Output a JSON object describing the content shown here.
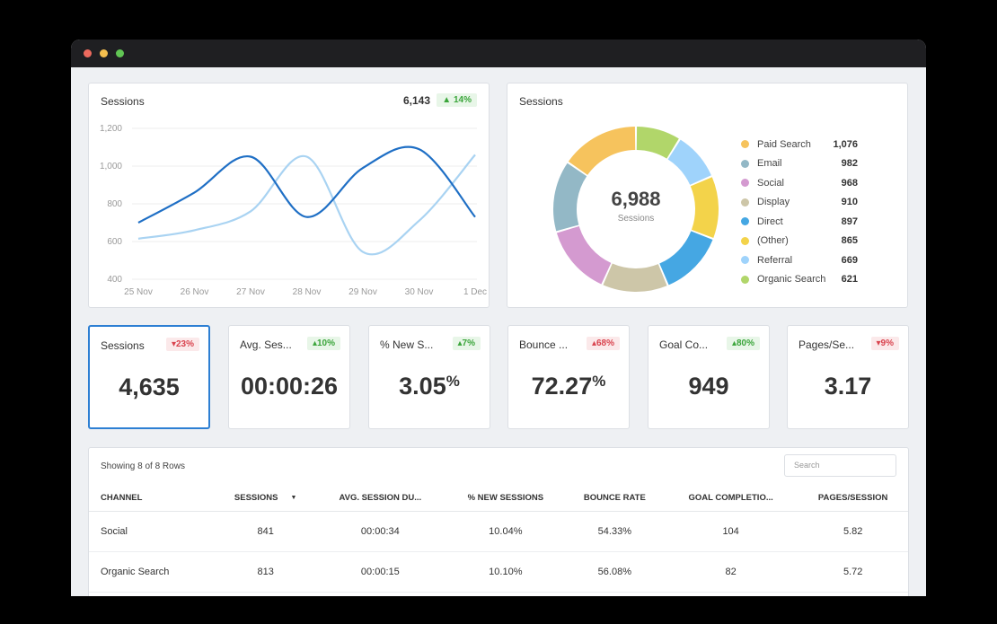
{
  "line_chart": {
    "title": "Sessions",
    "total": "6,143",
    "change": "14%",
    "change_dir": "up",
    "chart_data": {
      "type": "line",
      "x": [
        "25 Nov",
        "26 Nov",
        "27 Nov",
        "28 Nov",
        "29 Nov",
        "30 Nov",
        "1 Dec"
      ],
      "ylim": [
        400,
        1200
      ],
      "yticks": [
        "1,200",
        "1,000",
        "800",
        "600",
        "400"
      ],
      "series": [
        {
          "color": "#1f6fc5",
          "values": [
            700,
            860,
            1050,
            730,
            990,
            1090,
            730
          ]
        },
        {
          "color": "#a9d3f2",
          "values": [
            615,
            660,
            760,
            1050,
            545,
            710,
            1060
          ]
        }
      ]
    }
  },
  "donut": {
    "title": "Sessions",
    "center_value": "6,988",
    "center_label": "Sessions",
    "chart_data": {
      "type": "pie",
      "categories": [
        "Paid Search",
        "Email",
        "Social",
        "Display",
        "Direct",
        "(Other)",
        "Referral",
        "Organic Search"
      ],
      "labels": [
        "1,076",
        "982",
        "968",
        "910",
        "897",
        "865",
        "669",
        "621"
      ],
      "values": [
        1076,
        982,
        968,
        910,
        897,
        865,
        669,
        621
      ],
      "colors": [
        "#f6c35d",
        "#93b8c6",
        "#d49ad0",
        "#cdc6a8",
        "#45a7e3",
        "#f3d34a",
        "#9fd3fb",
        "#b1d66a"
      ],
      "draw_order": [
        "Organic Search",
        "Referral",
        "(Other)",
        "Direct",
        "Display",
        "Social",
        "Email",
        "Paid Search"
      ]
    }
  },
  "kpis": [
    {
      "label": "Sessions",
      "value": "4,635",
      "suffix": "",
      "change": "23%",
      "dir": "down",
      "active": true
    },
    {
      "label": "Avg. Session Duration",
      "value": "00:00:26",
      "suffix": "",
      "change": "10%",
      "dir": "up",
      "active": false
    },
    {
      "label": "% New Sessions",
      "value": "3.05",
      "suffix": "%",
      "change": "7%",
      "dir": "up",
      "active": false
    },
    {
      "label": "Bounce Rate",
      "value": "72.27",
      "suffix": "%",
      "change": "68%",
      "dir": "up-bad",
      "active": false
    },
    {
      "label": "Goal Completions",
      "value": "949",
      "suffix": "",
      "change": "80%",
      "dir": "up",
      "active": false
    },
    {
      "label": "Pages/Session",
      "value": "3.17",
      "suffix": "",
      "change": "9%",
      "dir": "down",
      "active": false
    }
  ],
  "kpi_labels_visible": [
    "Sessions",
    "Avg. Ses...",
    "% New S...",
    "Bounce ...",
    "Goal Co...",
    "Pages/Se..."
  ],
  "table": {
    "row_count_text": "Showing 8 of 8 Rows",
    "search_placeholder": "Search",
    "headers": [
      "CHANNEL",
      "SESSIONS",
      "AVG. SESSION DU...",
      "% NEW SESSIONS",
      "BOUNCE RATE",
      "GOAL COMPLETIO...",
      "PAGES/SESSION"
    ],
    "rows": [
      [
        "Social",
        "841",
        "00:00:34",
        "10.04%",
        "54.33%",
        "104",
        "5.82"
      ],
      [
        "Organic Search",
        "813",
        "00:00:15",
        "10.10%",
        "56.08%",
        "82",
        "5.72"
      ]
    ]
  }
}
